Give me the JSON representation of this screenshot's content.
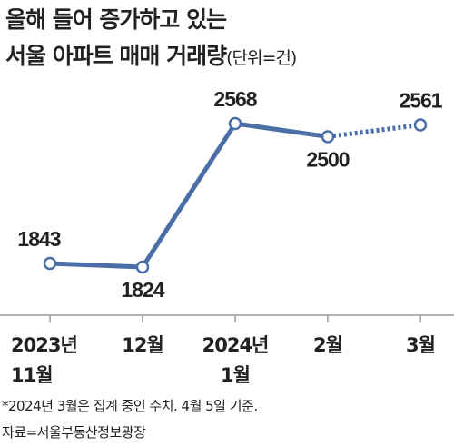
{
  "chart_data": {
    "type": "line",
    "title": [
      "올해 들어 증가하고 있는",
      "서울 아파트 매매 거래량"
    ],
    "unit": "(단위=건)",
    "categories": [
      "2023년\n11월",
      "12월",
      "2024년\n1월",
      "2월",
      "3월"
    ],
    "series": [
      {
        "name": "서울 아파트 매매 거래량",
        "color": "#4a6fa8",
        "values": [
          1843,
          1824,
          2568,
          2500,
          2561
        ]
      }
    ],
    "last_segment_style": "dotted",
    "note": "*2024년 3월은 집계 중인 수치. 4월 5일 기준.",
    "source": "자료=서울부동산정보광장"
  }
}
